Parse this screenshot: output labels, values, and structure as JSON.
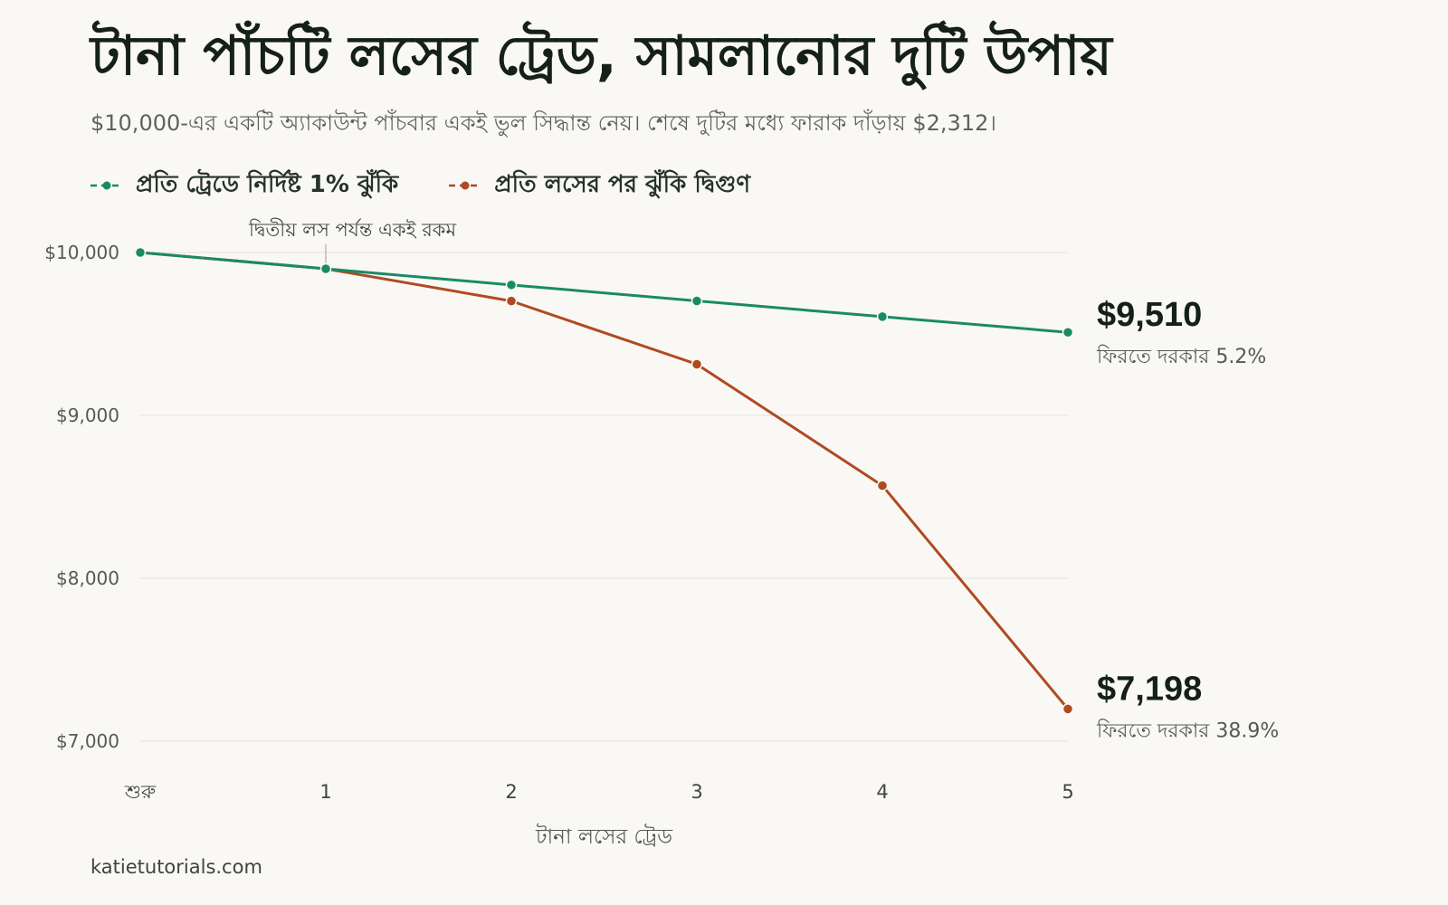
{
  "title": "টানা পাঁচটি লসের ট্রেড, সামলানোর দুটি উপায়",
  "subtitle": "$10,000-এর একটি অ্যাকাউন্ট পাঁচবার একই ভুল সিদ্ধান্ত নেয়। শেষে দুটির মধ্যে ফারাক দাঁড়ায় $2,312।",
  "source": "katietutorials.com",
  "colors": {
    "fixed": "#1a8a66",
    "doubling": "#b04a22"
  },
  "chart_data": {
    "type": "line",
    "categories": [
      "শুরু",
      "1",
      "2",
      "3",
      "4",
      "5"
    ],
    "xlabel": "টানা লসের ট্রেড",
    "ylabel": "",
    "ylim": [
      7000,
      10000
    ],
    "yticks": [
      10000,
      9000,
      8000,
      7000
    ],
    "ytick_labels": [
      "$10,000",
      "$9,000",
      "$8,000",
      "$7,000"
    ],
    "grid": true,
    "legend_position": "top-left",
    "series": [
      {
        "name": "প্রতি ট্রেডে নির্দিষ্ট 1% ঝুঁকি",
        "values": [
          10000,
          9900,
          9801,
          9703,
          9606,
          9510
        ],
        "end_label": "$9,510",
        "end_note": "ফিরতে দরকার 5.2%"
      },
      {
        "name": "প্রতি লসের পর ঝুঁকি দ্বিগুণ",
        "values": [
          10000,
          9900,
          9702,
          9314,
          8569,
          7198
        ],
        "end_label": "$7,198",
        "end_note": "ফিরতে দরকার 38.9%"
      }
    ],
    "annotation": {
      "text": "দ্বিতীয় লস পর্যন্ত একই রকম",
      "category_index": 1
    }
  }
}
